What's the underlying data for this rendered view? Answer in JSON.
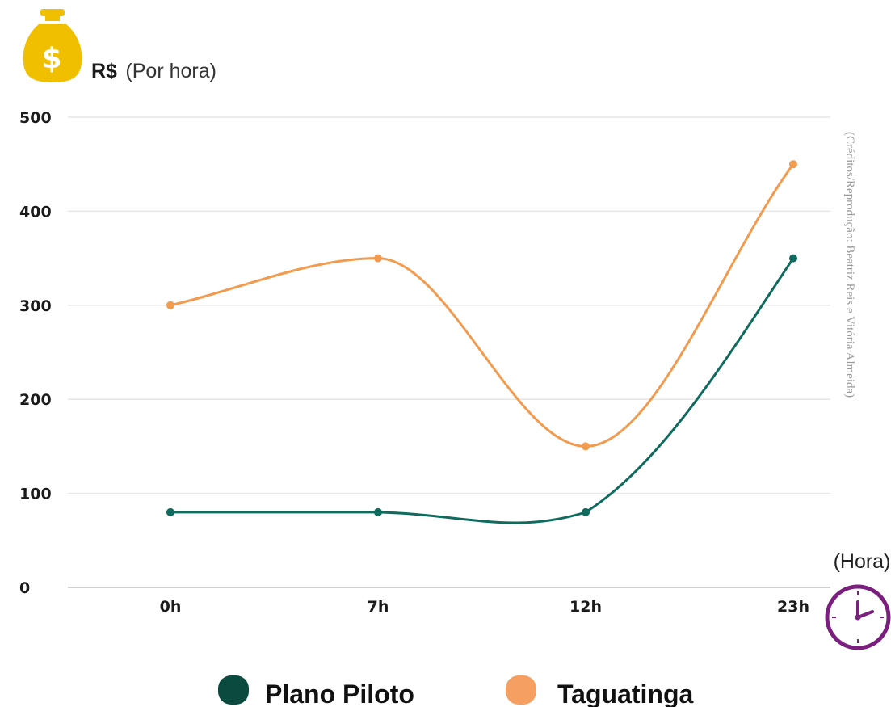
{
  "chart_data": {
    "type": "line",
    "ylabel_prefix": "R$",
    "ylabel_suffix": "(Por hora)",
    "xlabel": "(Hora)",
    "categories": [
      "0h",
      "7h",
      "12h",
      "23h"
    ],
    "ylim": [
      0,
      500
    ],
    "yticks": [
      0,
      100,
      200,
      300,
      400,
      500
    ],
    "grid": true,
    "legend_position": "bottom",
    "series": [
      {
        "name": "Plano Piloto",
        "values": [
          80,
          80,
          80,
          350
        ],
        "color": "#0f6b5e",
        "legend_color": "#0a4a3f"
      },
      {
        "name": "Taguatinga",
        "values": [
          300,
          350,
          150,
          450
        ],
        "color": "#f29a4e",
        "legend_color": "#f5a062"
      }
    ],
    "credit": "(Créditos/Reprodução: Beatriz Reis e Vitória Almeida)",
    "icons": {
      "y_axis": "money-bag-icon",
      "x_axis": "clock-icon"
    },
    "colors": {
      "money_bag": "#f0c000",
      "clock": "#7b1f7f",
      "grid": "#e6e6e6"
    }
  }
}
